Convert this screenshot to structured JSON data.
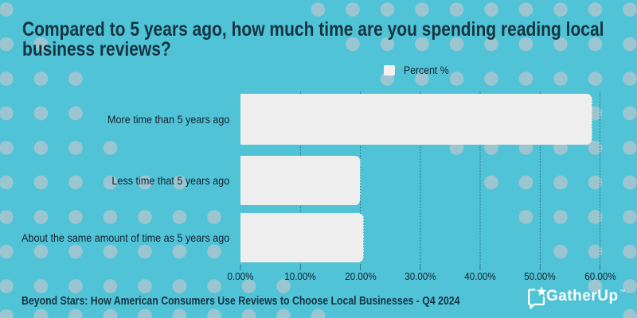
{
  "title": {
    "lines": [
      "Compared to 5 years ago, how much time are you spending reading local",
      "business reviews?"
    ]
  },
  "legend": {
    "label": "Percent %"
  },
  "chart_data": {
    "type": "bar",
    "orientation": "horizontal",
    "title": "Compared to 5 years ago, how much time are you spending reading local business reviews?",
    "categories": [
      "More time than 5 years ago",
      "Less time that 5 years ago",
      "About the same amount of time as 5 years ago"
    ],
    "series": [
      {
        "name": "Percent %",
        "values": [
          58.6,
          19.9,
          20.5
        ]
      }
    ],
    "xlabel": "",
    "ylabel": "",
    "xlim": [
      0,
      60
    ],
    "x_ticks": [
      {
        "value": 0,
        "label": "0.00%"
      },
      {
        "value": 10,
        "label": "10.00%"
      },
      {
        "value": 20,
        "label": "20.00%"
      },
      {
        "value": 30,
        "label": "30.00%"
      },
      {
        "value": 40,
        "label": "40.00%"
      },
      {
        "value": 50,
        "label": "50.00%"
      },
      {
        "value": 60,
        "label": "60.00%"
      }
    ],
    "grid": "vertical-dashed",
    "legend_position": "top-center",
    "bar_color": "#eeeeee"
  },
  "footer": {
    "source_text": "Beyond Stars: How American Consumers Use Reviews to Choose Local Businesses - Q4 2024"
  },
  "logo": {
    "text": "GatherUp",
    "trademark": "™",
    "icon": "speech-bubble-star-icon"
  },
  "colors": {
    "background": "#51c3d7",
    "dots": "#9bc6d1",
    "gridline": "#2b7e92",
    "bar": "#eeeeee",
    "title_text": "#143440",
    "label_text": "#13222e",
    "logo": "#ffffff"
  }
}
